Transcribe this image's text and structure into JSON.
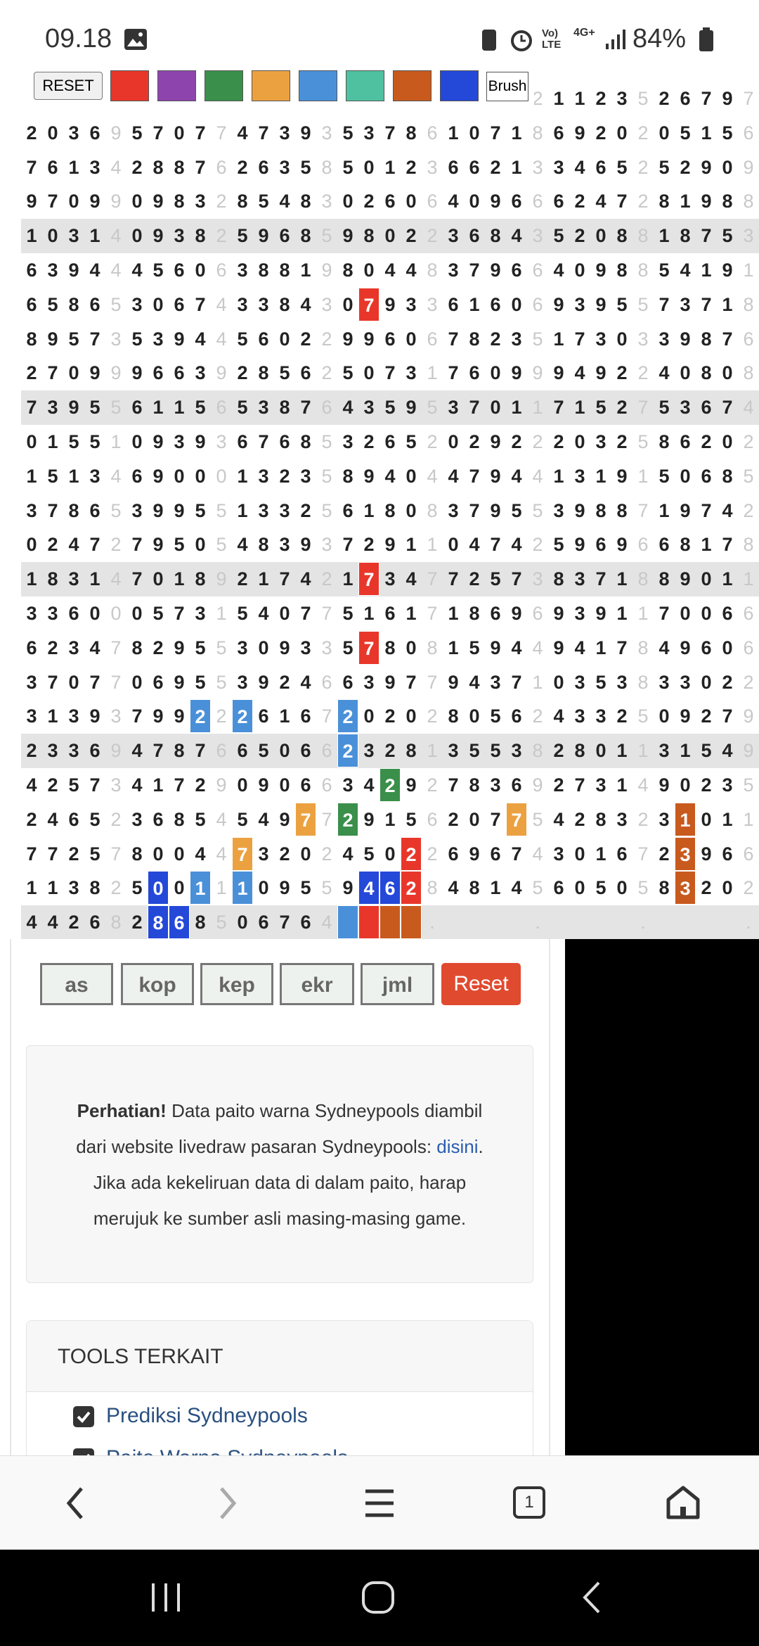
{
  "status_bar": {
    "time": "09.18",
    "volte": "Vo)",
    "lte": "LTE",
    "network": "4G+",
    "battery": "84%"
  },
  "toolbar": {
    "reset": "RESET",
    "colors": [
      "#e8372a",
      "#8e44ad",
      "#3a8f4a",
      "#eca140",
      "#4a90d9",
      "#4fc1a0",
      "#c85a1e",
      "#2448d8"
    ],
    "brush": "Brush"
  },
  "grid": {
    "rows": [
      [
        null,
        null,
        null,
        null,
        null,
        null,
        null,
        null,
        null,
        null,
        null,
        null,
        null,
        null,
        null,
        null,
        null,
        null,
        null,
        null,
        null,
        null,
        null,
        null,
        "2",
        "1",
        "1",
        "2",
        "3",
        "5",
        "2",
        "6",
        "7",
        "9",
        "7"
      ],
      [
        "2",
        "0",
        "3",
        "6",
        "9",
        "5",
        "7",
        "0",
        "7",
        "7",
        "4",
        "7",
        "3",
        "9",
        "3",
        "5",
        "3",
        "7",
        "8",
        "6",
        "1",
        "0",
        "7",
        "1",
        "8",
        "6",
        "9",
        "2",
        "0",
        "2",
        "0",
        "5",
        "1",
        "5",
        "6"
      ],
      [
        "7",
        "6",
        "1",
        "3",
        "4",
        "2",
        "8",
        "8",
        "7",
        "6",
        "2",
        "6",
        "3",
        "5",
        "8",
        "5",
        "0",
        "1",
        "2",
        "3",
        "6",
        "6",
        "2",
        "1",
        "3",
        "3",
        "4",
        "6",
        "5",
        "2",
        "5",
        "2",
        "9",
        "0",
        "9"
      ],
      [
        "9",
        "7",
        "0",
        "9",
        "9",
        "0",
        "9",
        "8",
        "3",
        "2",
        "8",
        "5",
        "4",
        "8",
        "3",
        "0",
        "2",
        "6",
        "0",
        "6",
        "4",
        "0",
        "9",
        "6",
        "6",
        "6",
        "2",
        "4",
        "7",
        "2",
        "8",
        "1",
        "9",
        "8",
        "8"
      ],
      [
        "1",
        "0",
        "3",
        "1",
        "4",
        "0",
        "9",
        "3",
        "8",
        "2",
        "5",
        "9",
        "6",
        "8",
        "5",
        "9",
        "8",
        "0",
        "2",
        "2",
        "3",
        "6",
        "8",
        "4",
        "3",
        "5",
        "2",
        "0",
        "8",
        "8",
        "1",
        "8",
        "7",
        "5",
        "3"
      ],
      [
        "6",
        "3",
        "9",
        "4",
        "4",
        "4",
        "5",
        "6",
        "0",
        "6",
        "3",
        "8",
        "8",
        "1",
        "9",
        "8",
        "0",
        "4",
        "4",
        "8",
        "3",
        "7",
        "9",
        "6",
        "6",
        "4",
        "0",
        "9",
        "8",
        "8",
        "5",
        "4",
        "1",
        "9",
        "1"
      ],
      [
        "6",
        "5",
        "8",
        "6",
        "5",
        "3",
        "0",
        "6",
        "7",
        "4",
        "3",
        "3",
        "8",
        "4",
        "3",
        "0",
        {
          "text": "7",
          "color": "#e8372a"
        },
        "9",
        "3",
        "3",
        "6",
        "1",
        "6",
        "0",
        "6",
        "9",
        "3",
        "9",
        "5",
        "5",
        "7",
        "3",
        "7",
        "1",
        "8"
      ],
      [
        "8",
        "9",
        "5",
        "7",
        "3",
        "5",
        "3",
        "9",
        "4",
        "4",
        "5",
        "6",
        "0",
        "2",
        "2",
        "9",
        "9",
        "6",
        "0",
        "6",
        "7",
        "8",
        "2",
        "3",
        "5",
        "1",
        "7",
        "3",
        "0",
        "3",
        "3",
        "9",
        "8",
        "7",
        "6"
      ],
      [
        "2",
        "7",
        "0",
        "9",
        "9",
        "9",
        "6",
        "6",
        "3",
        "9",
        "2",
        "8",
        "5",
        "6",
        "2",
        "5",
        "0",
        "7",
        "3",
        "1",
        "7",
        "6",
        "0",
        "9",
        "9",
        "9",
        "4",
        "9",
        "2",
        "2",
        "4",
        "0",
        "8",
        "0",
        "8"
      ],
      [
        "7",
        "3",
        "9",
        "5",
        "5",
        "6",
        "1",
        "1",
        "5",
        "6",
        "5",
        "3",
        "8",
        "7",
        "6",
        "4",
        "3",
        "5",
        "9",
        "5",
        "3",
        "7",
        "0",
        "1",
        "1",
        "7",
        "1",
        "5",
        "2",
        "7",
        "5",
        "3",
        "6",
        "7",
        "4"
      ],
      [
        "0",
        "1",
        "5",
        "5",
        "1",
        "0",
        "9",
        "3",
        "9",
        "3",
        "6",
        "7",
        "6",
        "8",
        "5",
        "3",
        "2",
        "6",
        "5",
        "2",
        "0",
        "2",
        "9",
        "2",
        "2",
        "2",
        "0",
        "3",
        "2",
        "5",
        "8",
        "6",
        "2",
        "0",
        "2"
      ],
      [
        "1",
        "5",
        "1",
        "3",
        "4",
        "6",
        "9",
        "0",
        "0",
        "0",
        "1",
        "3",
        "2",
        "3",
        "5",
        "8",
        "9",
        "4",
        "0",
        "4",
        "4",
        "7",
        "9",
        "4",
        "4",
        "1",
        "3",
        "1",
        "9",
        "1",
        "5",
        "0",
        "6",
        "8",
        "5"
      ],
      [
        "3",
        "7",
        "8",
        "6",
        "5",
        "3",
        "9",
        "9",
        "5",
        "5",
        "1",
        "3",
        "3",
        "2",
        "5",
        "6",
        "1",
        "8",
        "0",
        "8",
        "3",
        "7",
        "9",
        "5",
        "5",
        "3",
        "9",
        "8",
        "8",
        "7",
        "1",
        "9",
        "7",
        "4",
        "2"
      ],
      [
        "0",
        "2",
        "4",
        "7",
        "2",
        "7",
        "9",
        "5",
        "0",
        "5",
        "4",
        "8",
        "3",
        "9",
        "3",
        "7",
        "2",
        "9",
        "1",
        "1",
        "0",
        "4",
        "7",
        "4",
        "2",
        "5",
        "9",
        "6",
        "9",
        "6",
        "6",
        "8",
        "1",
        "7",
        "8"
      ],
      [
        "1",
        "8",
        "3",
        "1",
        "4",
        "7",
        "0",
        "1",
        "8",
        "9",
        "2",
        "1",
        "7",
        "4",
        "2",
        "1",
        {
          "text": "7",
          "color": "#e8372a"
        },
        "3",
        "4",
        "7",
        "7",
        "2",
        "5",
        "7",
        "3",
        "8",
        "3",
        "7",
        "1",
        "8",
        "8",
        "9",
        "0",
        "1",
        "1"
      ],
      [
        "3",
        "3",
        "6",
        "0",
        "0",
        "0",
        "5",
        "7",
        "3",
        "1",
        "5",
        "4",
        "0",
        "7",
        "7",
        "5",
        "1",
        "6",
        "1",
        "7",
        "1",
        "8",
        "6",
        "9",
        "6",
        "9",
        "3",
        "9",
        "1",
        "1",
        "7",
        "0",
        "0",
        "6",
        "6"
      ],
      [
        "6",
        "2",
        "3",
        "4",
        "7",
        "8",
        "2",
        "9",
        "5",
        "5",
        "3",
        "0",
        "9",
        "3",
        "3",
        "5",
        {
          "text": "7",
          "color": "#e8372a"
        },
        "8",
        "0",
        "8",
        "1",
        "5",
        "9",
        "4",
        "4",
        "9",
        "4",
        "1",
        "7",
        "8",
        "4",
        "9",
        "6",
        "0",
        "6"
      ],
      [
        "3",
        "7",
        "0",
        "7",
        "7",
        "0",
        "6",
        "9",
        "5",
        "5",
        "3",
        "9",
        "2",
        "4",
        "6",
        "6",
        "3",
        "9",
        "7",
        "7",
        "9",
        "4",
        "3",
        "7",
        "1",
        "0",
        "3",
        "5",
        "3",
        "8",
        "3",
        "3",
        "0",
        "2",
        "2"
      ],
      [
        "3",
        "1",
        "3",
        "9",
        "3",
        "7",
        "9",
        "9",
        {
          "text": "2",
          "color": "#4a90d9"
        },
        "2",
        {
          "text": "2",
          "color": "#4a90d9"
        },
        "6",
        "1",
        "6",
        "7",
        {
          "text": "2",
          "color": "#4a90d9"
        },
        "0",
        "2",
        "0",
        "2",
        "8",
        "0",
        "5",
        "6",
        "2",
        "4",
        "3",
        "3",
        "2",
        "5",
        "0",
        "9",
        "2",
        "7",
        "9"
      ],
      [
        "2",
        "3",
        "3",
        "6",
        "9",
        "4",
        "7",
        "8",
        "7",
        "6",
        "6",
        "5",
        "0",
        "6",
        "6",
        {
          "text": "2",
          "color": "#4a90d9"
        },
        "3",
        "2",
        "8",
        "1",
        "3",
        "5",
        "5",
        "3",
        "8",
        "2",
        "8",
        "0",
        "1",
        "1",
        "3",
        "1",
        "5",
        "4",
        "9"
      ],
      [
        "4",
        "2",
        "5",
        "7",
        "3",
        "4",
        "1",
        "7",
        "2",
        "9",
        "0",
        "9",
        "0",
        "6",
        "6",
        "3",
        "4",
        {
          "text": "2",
          "color": "#3a8f4a"
        },
        "9",
        "2",
        "7",
        "8",
        "3",
        "6",
        "9",
        "2",
        "7",
        "3",
        "1",
        "4",
        "9",
        "0",
        "2",
        "3",
        "5"
      ],
      [
        "2",
        "4",
        "6",
        "5",
        "2",
        "3",
        "6",
        "8",
        "5",
        "4",
        "5",
        "4",
        "9",
        {
          "text": "7",
          "color": "#eca140"
        },
        "7",
        {
          "text": "2",
          "color": "#3a8f4a"
        },
        "9",
        "1",
        "5",
        "6",
        "2",
        "0",
        "7",
        {
          "text": "7",
          "color": "#eca140"
        },
        "5",
        "4",
        "2",
        "8",
        "3",
        "2",
        "3",
        {
          "text": "1",
          "color": "#c85a1e"
        },
        "0",
        "1",
        "1"
      ],
      [
        "7",
        "7",
        "2",
        "5",
        "7",
        "8",
        "0",
        "0",
        "4",
        "4",
        {
          "text": "7",
          "color": "#eca140"
        },
        "3",
        "2",
        "0",
        "2",
        "4",
        "5",
        "0",
        {
          "text": "2",
          "color": "#e8372a"
        },
        "2",
        "6",
        "9",
        "6",
        "7",
        "4",
        "3",
        "0",
        "1",
        "6",
        "7",
        "2",
        {
          "text": "3",
          "color": "#c85a1e"
        },
        "9",
        "6",
        "6"
      ],
      [
        "1",
        "1",
        "3",
        "8",
        "2",
        "5",
        {
          "text": "0",
          "color": "#2448d8"
        },
        "0",
        {
          "text": "1",
          "color": "#4a90d9"
        },
        "1",
        {
          "text": "1",
          "color": "#4a90d9"
        },
        "0",
        "9",
        "5",
        "5",
        "9",
        {
          "text": "4",
          "color": "#2448d8"
        },
        {
          "text": "6",
          "color": "#2448d8"
        },
        {
          "text": "2",
          "color": "#e8372a"
        },
        "8",
        "4",
        "8",
        "1",
        "4",
        "5",
        "6",
        "0",
        "5",
        "0",
        "5",
        "8",
        {
          "text": "3",
          "color": "#c85a1e"
        },
        "2",
        "0",
        "2"
      ],
      [
        "4",
        "4",
        "2",
        "6",
        "8",
        "2",
        {
          "text": "8",
          "color": "#2448d8"
        },
        {
          "text": "6",
          "color": "#2448d8"
        },
        "8",
        "5",
        "0",
        "6",
        "7",
        "6",
        "4",
        {
          "color": "#4a90d9"
        },
        {
          "color": "#e8372a"
        },
        {
          "color": "#c85a1e"
        },
        {
          "color": "#c85a1e"
        },
        ".",
        null,
        null,
        null,
        null,
        ".",
        null,
        null,
        null,
        null,
        ".",
        null,
        null,
        null,
        null,
        "."
      ]
    ]
  },
  "buttons": {
    "items": [
      "as",
      "kop",
      "kep",
      "ekr",
      "jml"
    ],
    "reset": "Reset"
  },
  "notice": {
    "bold": "Perhatian!",
    "line1": "Data paito warna Sydneypools diambil",
    "line2": "dari website livedraw pasaran Sydneypools:",
    "link": "disini",
    "line2_end": ".",
    "line3": "Jika ada kekeliruan data di dalam paito, harap",
    "line4": "merujuk ke sumber asli masing-masing game."
  },
  "tools": {
    "title": "TOOLS TERKAIT",
    "links": [
      "Prediksi Sydneypools",
      "Paito Warna Sydneypools"
    ]
  },
  "browser": {
    "tabs": "1"
  }
}
